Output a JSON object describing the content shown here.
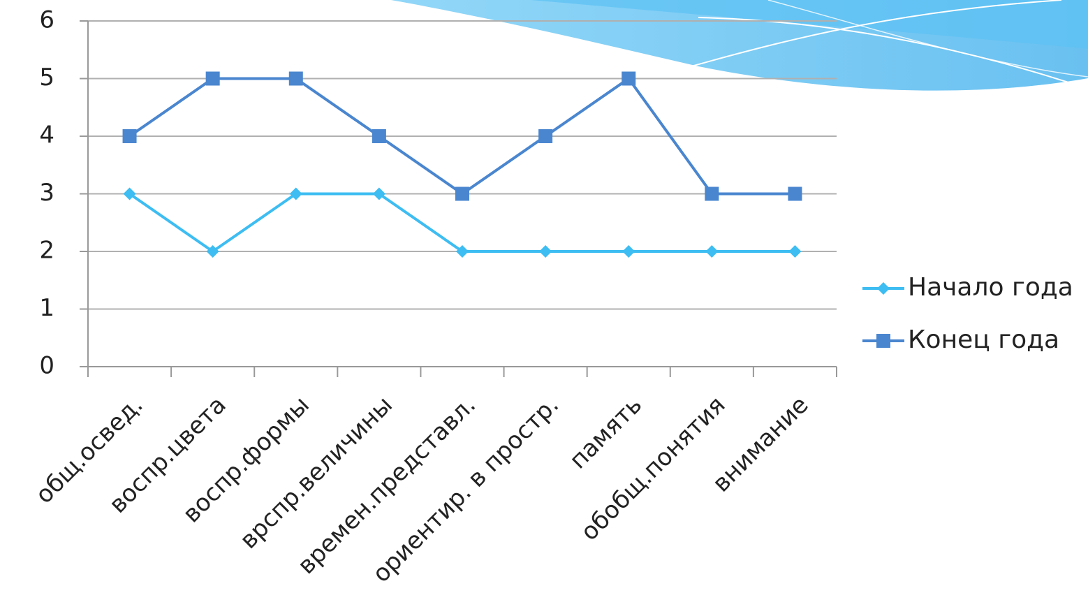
{
  "chart_data": {
    "type": "line",
    "categories": [
      "общ.освед.",
      "воспр.цвета",
      "воспр.формы",
      "врспр.величины",
      "времен.представл.",
      "ориентир. в простр.",
      "память",
      "обобщ.понятия",
      "внимание"
    ],
    "series": [
      {
        "name": "Начало года",
        "color": "#3dbdf2",
        "marker": "diamond",
        "values": [
          3,
          2,
          3,
          3,
          2,
          2,
          2,
          2,
          2
        ]
      },
      {
        "name": "Конец года",
        "color": "#4a86cf",
        "marker": "square",
        "values": [
          4,
          5,
          5,
          4,
          3,
          4,
          5,
          3,
          3
        ]
      }
    ],
    "ylim": [
      0,
      6
    ],
    "yticks": [
      0,
      1,
      2,
      3,
      4,
      5,
      6
    ],
    "grid": true,
    "legend": "right"
  }
}
